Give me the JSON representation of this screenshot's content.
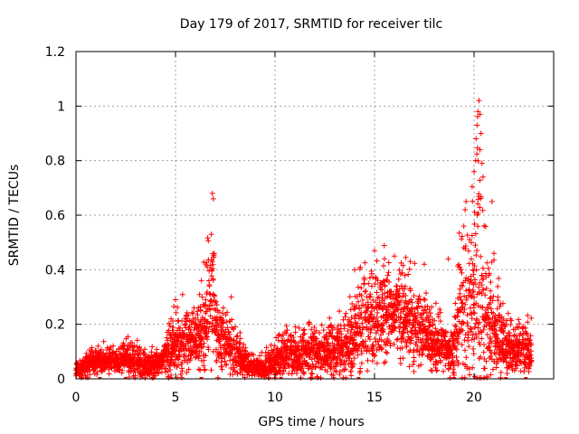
{
  "chart_data": {
    "type": "scatter",
    "title": "Day 179 of 2017, SRMTID for receiver tilc",
    "xlabel": "GPS time / hours",
    "ylabel": "SRMTID / TECUs",
    "xlim": [
      0,
      24
    ],
    "ylim": [
      0,
      1.2
    ],
    "x_ticks": [
      0,
      5,
      10,
      15,
      20
    ],
    "x_tick_labels": [
      "0",
      "5",
      "10",
      "15",
      "20"
    ],
    "y_ticks": [
      0,
      0.2,
      0.4,
      0.6,
      0.8,
      1.0,
      1.2
    ],
    "y_tick_labels": [
      "0",
      "0.2",
      "0.4",
      "0.6",
      "0.8",
      "1",
      "1.2"
    ],
    "grid": true,
    "marker": "plus",
    "colors": {
      "series": "#ff0000",
      "axis": "#000000",
      "grid": "#a0a0a0"
    },
    "series": [
      {
        "name": "SRMTID",
        "activity_profile": [
          [
            0.0,
            0.03,
            0.02
          ],
          [
            0.5,
            0.05,
            0.03
          ],
          [
            1.0,
            0.06,
            0.03
          ],
          [
            1.5,
            0.07,
            0.03
          ],
          [
            2.0,
            0.06,
            0.03
          ],
          [
            2.5,
            0.07,
            0.04
          ],
          [
            3.0,
            0.06,
            0.04
          ],
          [
            3.5,
            0.05,
            0.03
          ],
          [
            4.0,
            0.05,
            0.03
          ],
          [
            4.5,
            0.08,
            0.05
          ],
          [
            5.0,
            0.12,
            0.07
          ],
          [
            5.5,
            0.14,
            0.08
          ],
          [
            6.0,
            0.13,
            0.06
          ],
          [
            6.5,
            0.2,
            0.12
          ],
          [
            6.9,
            0.28,
            0.18
          ],
          [
            7.2,
            0.15,
            0.08
          ],
          [
            7.6,
            0.12,
            0.06
          ],
          [
            8.0,
            0.1,
            0.06
          ],
          [
            8.5,
            0.06,
            0.03
          ],
          [
            9.0,
            0.04,
            0.02
          ],
          [
            9.5,
            0.04,
            0.03
          ],
          [
            10.0,
            0.06,
            0.04
          ],
          [
            10.5,
            0.08,
            0.05
          ],
          [
            11.0,
            0.08,
            0.05
          ],
          [
            11.5,
            0.09,
            0.05
          ],
          [
            12.0,
            0.1,
            0.06
          ],
          [
            12.5,
            0.1,
            0.06
          ],
          [
            13.0,
            0.1,
            0.07
          ],
          [
            13.5,
            0.12,
            0.07
          ],
          [
            14.0,
            0.17,
            0.1
          ],
          [
            14.5,
            0.2,
            0.11
          ],
          [
            15.0,
            0.22,
            0.11
          ],
          [
            15.5,
            0.24,
            0.11
          ],
          [
            16.0,
            0.24,
            0.11
          ],
          [
            16.5,
            0.22,
            0.1
          ],
          [
            17.0,
            0.2,
            0.1
          ],
          [
            17.5,
            0.16,
            0.08
          ],
          [
            18.0,
            0.13,
            0.07
          ],
          [
            18.5,
            0.11,
            0.06
          ],
          [
            19.0,
            0.1,
            0.06
          ],
          [
            19.3,
            0.25,
            0.16
          ],
          [
            19.7,
            0.26,
            0.18
          ],
          [
            20.0,
            0.33,
            0.22
          ],
          [
            20.2,
            0.45,
            0.3
          ],
          [
            20.5,
            0.22,
            0.18
          ],
          [
            21.0,
            0.18,
            0.12
          ],
          [
            21.5,
            0.12,
            0.07
          ],
          [
            22.0,
            0.09,
            0.05
          ],
          [
            22.6,
            0.1,
            0.06
          ]
        ],
        "highlight_points": [
          [
            6.85,
            0.68
          ],
          [
            6.9,
            0.66
          ],
          [
            6.8,
            0.53
          ],
          [
            6.95,
            0.46
          ],
          [
            6.6,
            0.41
          ],
          [
            20.25,
            1.02
          ],
          [
            20.2,
            0.98
          ],
          [
            20.3,
            0.97
          ],
          [
            20.15,
            0.93
          ],
          [
            20.35,
            0.9
          ],
          [
            20.1,
            0.88
          ],
          [
            20.3,
            0.84
          ],
          [
            20.4,
            0.79
          ],
          [
            20.0,
            0.76
          ],
          [
            20.45,
            0.74
          ],
          [
            19.6,
            0.65
          ],
          [
            20.9,
            0.65
          ],
          [
            19.55,
            0.62
          ],
          [
            15.0,
            0.47
          ],
          [
            16.0,
            0.45
          ],
          [
            15.5,
            0.44
          ],
          [
            16.8,
            0.43
          ],
          [
            14.0,
            0.4
          ],
          [
            17.5,
            0.42
          ],
          [
            7.8,
            0.3
          ],
          [
            5.0,
            0.29
          ],
          [
            6.3,
            0.36
          ],
          [
            21.0,
            0.46
          ],
          [
            21.2,
            0.3
          ],
          [
            18.7,
            0.44
          ]
        ],
        "gaps_hours": [
          [
            22.9,
            24.0
          ]
        ],
        "baseline_markers_x": [
          0.3,
          1.2,
          2.5,
          4.8,
          6.3,
          10.3,
          14.2,
          19.0,
          20.5,
          21.6,
          22.6
        ]
      }
    ]
  }
}
